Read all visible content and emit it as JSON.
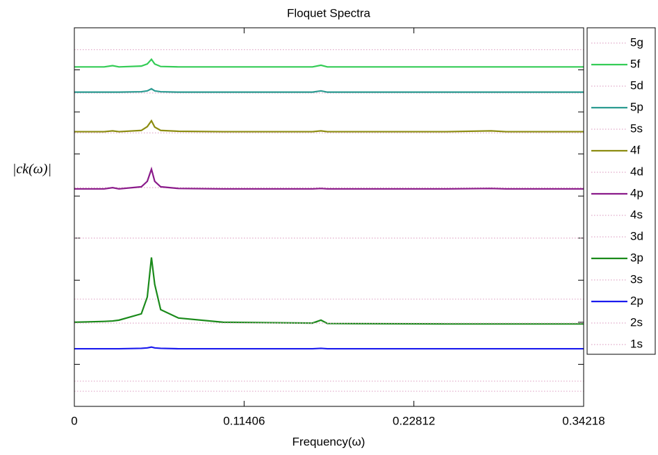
{
  "chart_data": {
    "type": "line",
    "title": "Floquet Spectra",
    "xlabel": "Frequency(ω)",
    "ylabel": "|ck(ω)|",
    "x": [
      0,
      0.02,
      0.0257,
      0.03,
      0.045,
      0.049,
      0.0518,
      0.054,
      0.058,
      0.07,
      0.1,
      0.16,
      0.1657,
      0.17,
      0.25,
      0.28,
      0.29,
      0.34218
    ],
    "xlim": [
      0,
      0.34218
    ],
    "xticks": [
      0,
      0.11406,
      0.22812,
      0.34218
    ],
    "ylim": [
      0,
      9
    ],
    "yticks": [
      0,
      1,
      2,
      3,
      4,
      5,
      6,
      7,
      8,
      9
    ],
    "series": [
      {
        "name": "5g",
        "color": "#e0a8c8",
        "dotted": true,
        "values": [
          8.48,
          8.48,
          8.48,
          8.48,
          8.48,
          8.48,
          8.48,
          8.48,
          8.48,
          8.48,
          8.48,
          8.48,
          8.48,
          8.48,
          8.48,
          8.48,
          8.48,
          8.48
        ]
      },
      {
        "name": "5f",
        "color": "#33cc55",
        "dotted": false,
        "values": [
          8.07,
          8.07,
          8.1,
          8.07,
          8.09,
          8.14,
          8.25,
          8.14,
          8.08,
          8.07,
          8.07,
          8.07,
          8.11,
          8.07,
          8.07,
          8.07,
          8.07,
          8.07
        ]
      },
      {
        "name": "5d",
        "color": "#e0a8c8",
        "dotted": true,
        "values": [
          7.45,
          7.45,
          7.45,
          7.45,
          7.45,
          7.45,
          7.45,
          7.45,
          7.45,
          7.45,
          7.45,
          7.45,
          7.45,
          7.45,
          7.45,
          7.45,
          7.45,
          7.45
        ]
      },
      {
        "name": "5p",
        "color": "#2a9a90",
        "dotted": false,
        "values": [
          7.47,
          7.47,
          7.47,
          7.47,
          7.48,
          7.5,
          7.55,
          7.5,
          7.48,
          7.47,
          7.47,
          7.47,
          7.5,
          7.47,
          7.47,
          7.47,
          7.47,
          7.47
        ]
      },
      {
        "name": "5s",
        "color": "#e0a8c8",
        "dotted": true,
        "values": [
          6.5,
          6.5,
          6.5,
          6.5,
          6.5,
          6.5,
          6.5,
          6.5,
          6.5,
          6.5,
          6.5,
          6.5,
          6.5,
          6.5,
          6.5,
          6.5,
          6.5,
          6.5
        ]
      },
      {
        "name": "4f",
        "color": "#8c8c10",
        "dotted": false,
        "values": [
          6.53,
          6.53,
          6.55,
          6.53,
          6.56,
          6.65,
          6.79,
          6.64,
          6.56,
          6.54,
          6.53,
          6.53,
          6.55,
          6.53,
          6.53,
          6.55,
          6.53,
          6.53
        ]
      },
      {
        "name": "4d",
        "color": "#e0a8c8",
        "dotted": true,
        "values": [
          5.2,
          5.2,
          5.2,
          5.2,
          5.2,
          5.2,
          5.2,
          5.2,
          5.2,
          5.2,
          5.2,
          5.2,
          5.2,
          5.2,
          5.2,
          5.2,
          5.2,
          5.2
        ]
      },
      {
        "name": "4p",
        "color": "#8a1a8a",
        "dotted": false,
        "values": [
          5.17,
          5.17,
          5.2,
          5.17,
          5.22,
          5.35,
          5.64,
          5.35,
          5.22,
          5.18,
          5.17,
          5.17,
          5.18,
          5.17,
          5.17,
          5.18,
          5.17,
          5.17
        ]
      },
      {
        "name": "4s",
        "color": "#e0a8c8",
        "dotted": true,
        "values": [
          4.0,
          4.0,
          4.0,
          4.0,
          4.0,
          4.0,
          4.0,
          4.0,
          4.0,
          4.0,
          4.0,
          4.0,
          4.0,
          4.0,
          4.0,
          4.0,
          4.0,
          4.0
        ]
      },
      {
        "name": "3d",
        "color": "#e0a8c8",
        "dotted": true,
        "values": [
          2.55,
          2.55,
          2.55,
          2.55,
          2.55,
          2.55,
          2.55,
          2.55,
          2.55,
          2.55,
          2.55,
          2.55,
          2.55,
          2.55,
          2.55,
          2.55,
          2.55,
          2.55
        ]
      },
      {
        "name": "3p",
        "color": "#1a8a1a",
        "dotted": false,
        "values": [
          2.0,
          2.02,
          2.03,
          2.05,
          2.2,
          2.6,
          3.54,
          2.9,
          2.3,
          2.1,
          2.0,
          1.98,
          2.05,
          1.97,
          1.96,
          1.96,
          1.96,
          1.96
        ]
      },
      {
        "name": "3s",
        "color": "#e0a8c8",
        "dotted": true,
        "values": [
          1.98,
          1.98,
          1.98,
          1.98,
          1.98,
          1.98,
          1.98,
          1.98,
          1.98,
          1.98,
          1.98,
          1.98,
          1.98,
          1.98,
          1.98,
          1.98,
          1.98,
          1.98
        ]
      },
      {
        "name": "2p",
        "color": "#1a1aee",
        "dotted": false,
        "values": [
          1.37,
          1.37,
          1.37,
          1.37,
          1.38,
          1.39,
          1.41,
          1.39,
          1.38,
          1.37,
          1.37,
          1.37,
          1.38,
          1.37,
          1.37,
          1.37,
          1.37,
          1.37
        ]
      },
      {
        "name": "2s",
        "color": "#e0a8c8",
        "dotted": true,
        "values": [
          0.6,
          0.6,
          0.6,
          0.6,
          0.6,
          0.6,
          0.6,
          0.6,
          0.6,
          0.6,
          0.6,
          0.6,
          0.6,
          0.6,
          0.6,
          0.6,
          0.6,
          0.6
        ]
      },
      {
        "name": "1s",
        "color": "#e0a8c8",
        "dotted": true,
        "values": [
          0.36,
          0.36,
          0.36,
          0.36,
          0.36,
          0.36,
          0.36,
          0.36,
          0.36,
          0.36,
          0.36,
          0.36,
          0.36,
          0.36,
          0.36,
          0.36,
          0.36,
          0.36
        ]
      }
    ]
  }
}
